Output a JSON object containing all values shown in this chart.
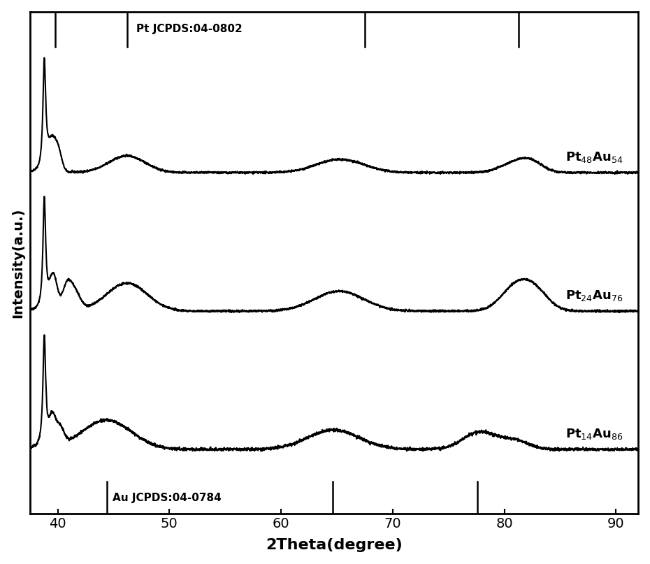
{
  "xlabel": "2Theta(degree)",
  "ylabel": "Intensity(a.u.)",
  "xlim": [
    37.5,
    92
  ],
  "ylim": [
    -0.55,
    3.8
  ],
  "xticks": [
    40,
    50,
    60,
    70,
    80,
    90
  ],
  "background_color": "#ffffff",
  "line_color": "#000000",
  "Pt_reference_lines": [
    39.76,
    46.24,
    67.5,
    81.3
  ],
  "Au_reference_lines": [
    44.4,
    64.6,
    77.6
  ],
  "Pt_label": "Pt JCPDS:04-0802",
  "Au_label": "Au JCPDS:04-0784",
  "sample_labels": [
    "Pt$_{48}$Au$_{54}$",
    "Pt$_{24}$Au$_{76}$",
    "Pt$_{14}$Au$_{86}$"
  ],
  "offsets": [
    2.4,
    1.2,
    0.0
  ],
  "noise_seed": 42
}
